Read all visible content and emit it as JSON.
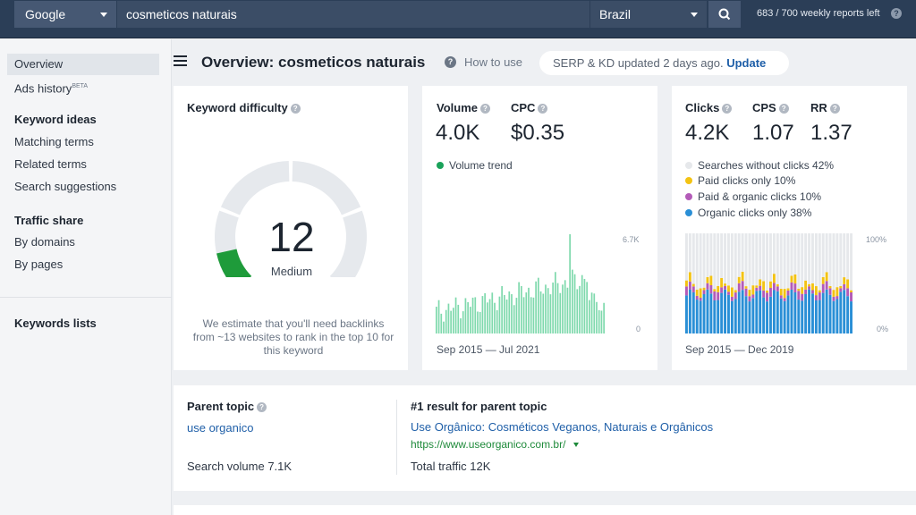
{
  "topbar": {
    "engine": "Google",
    "query": "cosmeticos naturais",
    "country": "Brazil",
    "reports_left": "683 / 700 weekly reports left"
  },
  "sidebar": {
    "overview": "Overview",
    "ads_history": "Ads history",
    "ads_history_badge": "BETA",
    "keyword_ideas_head": "Keyword ideas",
    "matching_terms": "Matching terms",
    "related_terms": "Related terms",
    "search_suggestions": "Search suggestions",
    "traffic_share_head": "Traffic share",
    "by_domains": "By domains",
    "by_pages": "By pages",
    "keywords_lists": "Keywords lists"
  },
  "header": {
    "title": "Overview: cosmeticos naturais",
    "how_to_use": "How to use",
    "updated_text": "SERP & KD updated 2 days ago.",
    "update_link": "Update"
  },
  "kd_card": {
    "title": "Keyword difficulty",
    "value": "12",
    "level": "Medium",
    "gauge_fraction": 0.12,
    "description": "We estimate that you'll need backlinks from ~13 websites to rank in the top 10 for this keyword"
  },
  "volume_card": {
    "volume_label": "Volume",
    "volume_value": "4.0K",
    "cpc_label": "CPC",
    "cpc_value": "$0.35",
    "trend_legend": "Volume trend",
    "y_max_label": "6.7K",
    "y_min_label": "0",
    "range": "Sep 2015 — Jul 2021"
  },
  "clicks_card": {
    "clicks_label": "Clicks",
    "clicks_value": "4.2K",
    "cps_label": "CPS",
    "cps_value": "1.07",
    "rr_label": "RR",
    "rr_value": "1.37",
    "legend": [
      {
        "label": "Searches without clicks 42%",
        "color": "#e6e8eb"
      },
      {
        "label": "Paid clicks only 10%",
        "color": "#f3c313"
      },
      {
        "label": "Paid & organic clicks 10%",
        "color": "#b35bb8"
      },
      {
        "label": "Organic clicks only 38%",
        "color": "#2a8fd6"
      }
    ],
    "y_max_label": "100%",
    "y_min_label": "0%",
    "range": "Sep 2015 — Dec 2019"
  },
  "parent_card": {
    "title": "Parent topic",
    "topic_link": "use organico",
    "search_volume": "Search volume 7.1K",
    "result_title": "#1 result for parent topic",
    "result_link": "Use Orgânico: Cosméticos Veganos, Naturais e Orgânicos",
    "result_url": "https://www.useorganico.com.br/",
    "total_traffic": "Total traffic 12K"
  },
  "colors": {
    "topbar": "#2b3e57",
    "gauge_green": "#1e9b3a",
    "volume_bar": "#7fd9ad",
    "link_blue": "#1f5fa8"
  }
}
